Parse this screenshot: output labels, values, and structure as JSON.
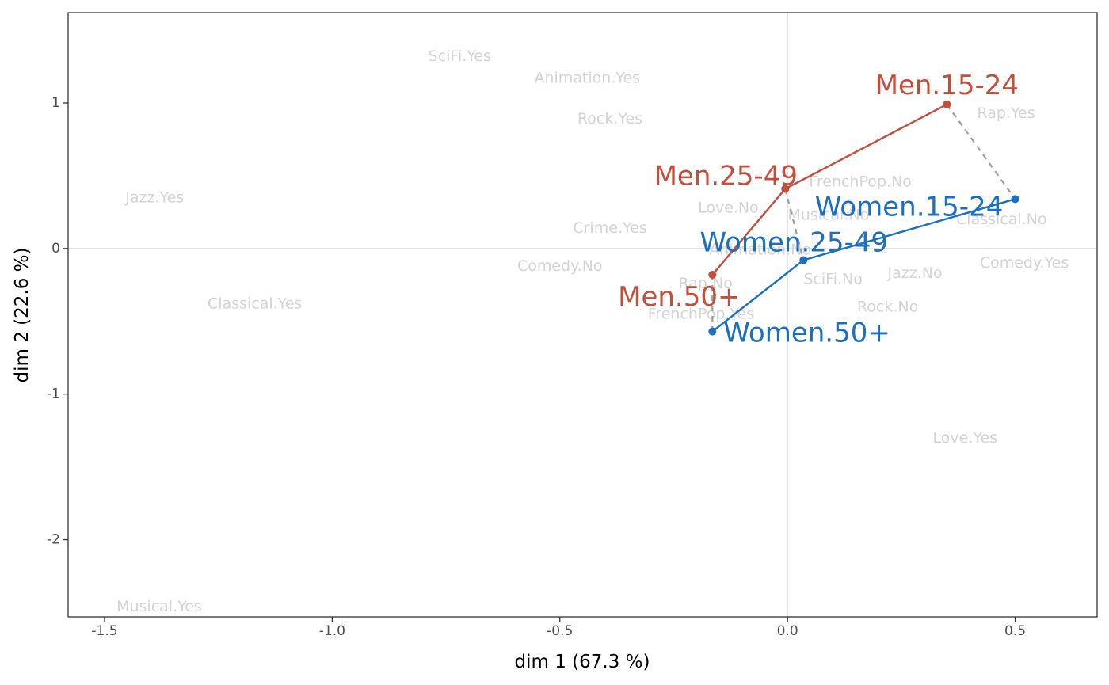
{
  "chart_data": {
    "type": "scatter",
    "title": "",
    "xlabel": "dim 1 (67.3 %)",
    "ylabel": "dim 2 (22.6 %)",
    "xlim": [
      -1.58,
      0.68
    ],
    "ylim": [
      -2.53,
      1.62
    ],
    "x_ticks": [
      -1.5,
      -1.0,
      -0.5,
      0.0,
      0.5
    ],
    "x_tick_labels": [
      "-1.5",
      "-1.0",
      "-0.5",
      "0.0",
      "0.5"
    ],
    "y_ticks": [
      -2,
      -1,
      0,
      1
    ],
    "y_tick_labels": [
      "-2",
      "-1",
      "0",
      "1"
    ],
    "reference_lines": {
      "x": 0,
      "y": 0
    },
    "grid": false,
    "colors": {
      "men": "#c44e3a",
      "women": "#1a6fc4",
      "category_labels": "#d3d3d3",
      "connector": "#9e9e9e",
      "reference": "#dedede"
    },
    "category_points": [
      {
        "label": "SciFi.Yes",
        "x": -0.72,
        "y": 1.32
      },
      {
        "label": "Animation.Yes",
        "x": -0.44,
        "y": 1.17
      },
      {
        "label": "Rock.Yes",
        "x": -0.39,
        "y": 0.89
      },
      {
        "label": "Jazz.Yes",
        "x": -1.39,
        "y": 0.35
      },
      {
        "label": "Crime.Yes",
        "x": -0.39,
        "y": 0.14
      },
      {
        "label": "Comedy.No",
        "x": -0.5,
        "y": -0.12
      },
      {
        "label": "Classical.Yes",
        "x": -1.17,
        "y": -0.38
      },
      {
        "label": "Love.No",
        "x": -0.13,
        "y": 0.28
      },
      {
        "label": "FrenchPop.No",
        "x": 0.16,
        "y": 0.46
      },
      {
        "label": "Musical.No",
        "x": 0.09,
        "y": 0.23
      },
      {
        "label": "Animation.No",
        "x": -0.06,
        "y": -0.01
      },
      {
        "label": "Rap.No",
        "x": -0.18,
        "y": -0.24
      },
      {
        "label": "FrenchPop.Yes",
        "x": -0.19,
        "y": -0.45
      },
      {
        "label": "SciFi.No",
        "x": 0.1,
        "y": -0.21
      },
      {
        "label": "Jazz.No",
        "x": 0.28,
        "y": -0.17
      },
      {
        "label": "Rock.No",
        "x": 0.22,
        "y": -0.4
      },
      {
        "label": "Rap.Yes",
        "x": 0.48,
        "y": 0.93
      },
      {
        "label": "Classical.No",
        "x": 0.47,
        "y": 0.2
      },
      {
        "label": "Comedy.Yes",
        "x": 0.52,
        "y": -0.1
      },
      {
        "label": "Love.Yes",
        "x": 0.39,
        "y": -1.3
      },
      {
        "label": "Musical.Yes",
        "x": -1.38,
        "y": -2.46
      }
    ],
    "series": [
      {
        "name": "Men",
        "color": "#c44e3a",
        "points": [
          {
            "label": "Men.50+",
            "x": -0.165,
            "y": -0.18
          },
          {
            "label": "Men.25-49",
            "x": -0.005,
            "y": 0.41
          },
          {
            "label": "Men.15-24",
            "x": 0.35,
            "y": 0.99
          }
        ]
      },
      {
        "name": "Women",
        "color": "#1a6fc4",
        "points": [
          {
            "label": "Women.50+",
            "x": -0.165,
            "y": -0.57
          },
          {
            "label": "Women.25-49",
            "x": 0.035,
            "y": -0.08
          },
          {
            "label": "Women.15-24",
            "x": 0.5,
            "y": 0.34
          }
        ]
      }
    ],
    "connectors": [
      {
        "from": "Men.50+",
        "to": "Women.50+"
      },
      {
        "from": "Men.25-49",
        "to": "Women.25-49"
      },
      {
        "from": "Men.15-24",
        "to": "Women.15-24"
      }
    ]
  }
}
